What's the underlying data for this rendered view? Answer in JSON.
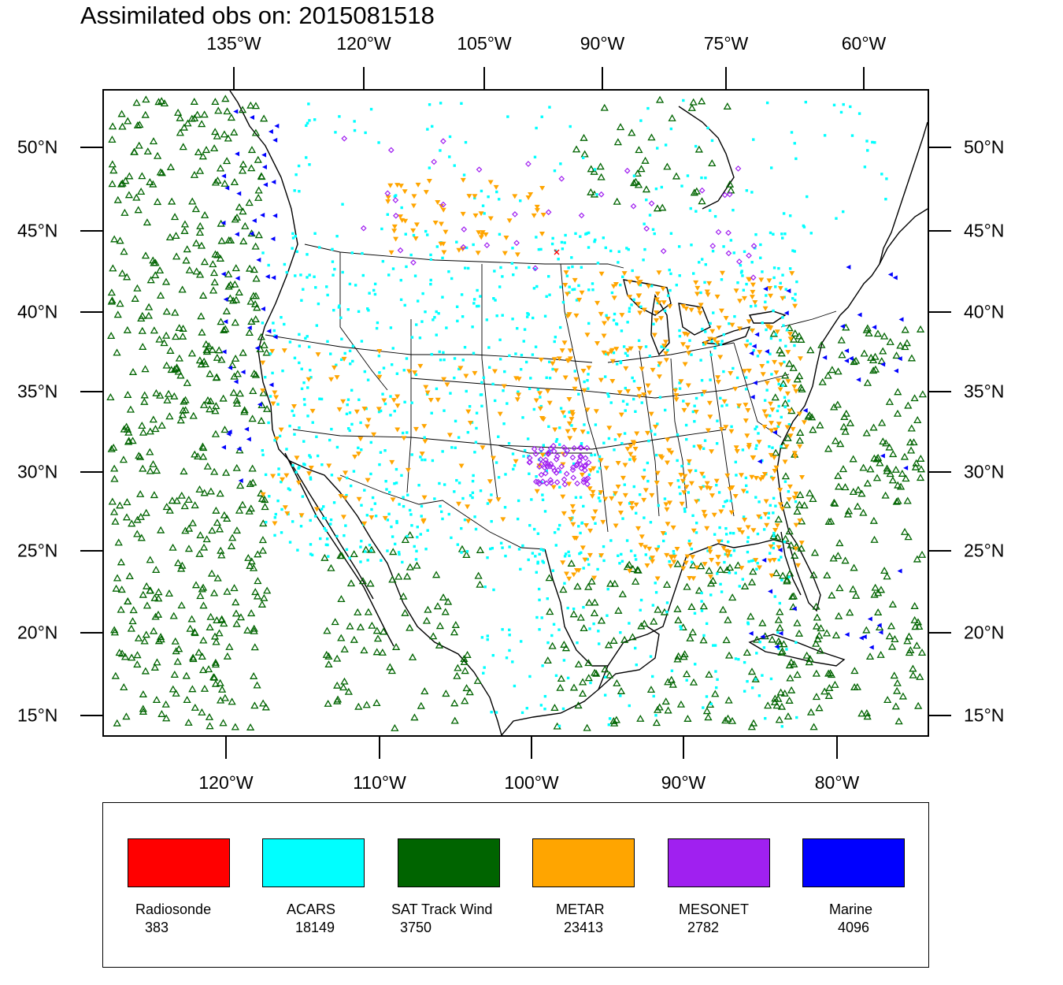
{
  "title": "Assimilated obs on: 2015081518",
  "axes": {
    "top_lon_labels": [
      "135°W",
      "120°W",
      "105°W",
      "90°W",
      "75°W",
      "60°W"
    ],
    "bottom_lon_labels": [
      "120°W",
      "110°W",
      "100°W",
      "90°W",
      "80°W"
    ],
    "lat_labels": [
      "50°N",
      "45°N",
      "40°N",
      "35°N",
      "30°N",
      "25°N",
      "20°N",
      "15°N"
    ]
  },
  "legend": [
    {
      "name": "Radiosonde",
      "count": "383",
      "color": "#ff0000",
      "marker": "x"
    },
    {
      "name": "ACARS",
      "count": "18149",
      "color": "#00ffff",
      "marker": "square"
    },
    {
      "name": "SAT Track Wind",
      "count": "3750",
      "color": "#006400",
      "marker": "triangle-up"
    },
    {
      "name": "METAR",
      "count": "23413",
      "color": "#ffa500",
      "marker": "triangle-down"
    },
    {
      "name": "MESONET",
      "count": "2782",
      "color": "#a020f0",
      "marker": "diamond"
    },
    {
      "name": "Marine",
      "count": "4096",
      "color": "#0000ff",
      "marker": "triangle-left"
    }
  ]
}
